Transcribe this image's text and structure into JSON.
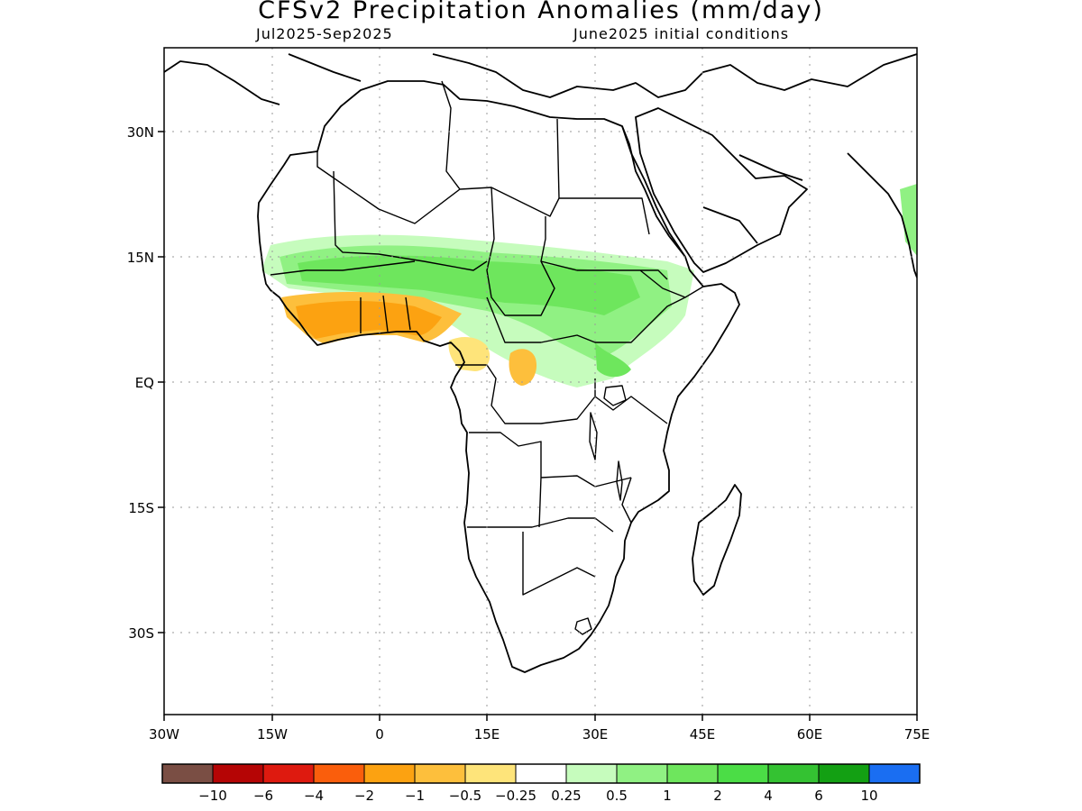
{
  "header": {
    "title": "CFSv2 Precipitation Anomalies (mm/day)",
    "period": "Jul2025-Sep2025",
    "init": "June2025 initial conditions"
  },
  "axes": {
    "lon_labels": [
      "30W",
      "15W",
      "0",
      "15E",
      "30E",
      "45E",
      "60E",
      "75E"
    ],
    "lat_labels": [
      "30N",
      "15N",
      "EQ",
      "15S",
      "30S"
    ]
  },
  "colorbar": {
    "colors": [
      "#7a4e44",
      "#b50505",
      "#de1a0f",
      "#fa5e0c",
      "#fca211",
      "#fdbf3c",
      "#fee47a",
      "#ffffff",
      "#c6fcbd",
      "#90f183",
      "#6ee65d",
      "#4bdd46",
      "#34c232",
      "#13a013",
      "#1a6ef2"
    ],
    "labels": [
      "−10",
      "−6",
      "−4",
      "−2",
      "−1",
      "−0.5",
      "−0.25",
      "0.25",
      "0.5",
      "1",
      "2",
      "4",
      "6",
      "10"
    ]
  }
}
